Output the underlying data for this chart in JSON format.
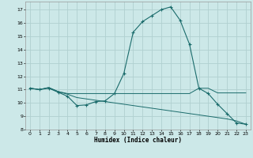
{
  "xlabel": "Humidex (Indice chaleur)",
  "bg_color": "#cce8e8",
  "grid_color": "#b0d0d0",
  "line_color": "#1a6b6b",
  "xlim": [
    -0.5,
    23.5
  ],
  "ylim": [
    8,
    17.6
  ],
  "xticks": [
    0,
    1,
    2,
    3,
    4,
    5,
    6,
    7,
    8,
    9,
    10,
    11,
    12,
    13,
    14,
    15,
    16,
    17,
    18,
    19,
    20,
    21,
    22,
    23
  ],
  "yticks": [
    8,
    9,
    10,
    11,
    12,
    13,
    14,
    15,
    16,
    17
  ],
  "curve1_x": [
    0,
    1,
    2,
    3,
    4,
    5,
    6,
    7,
    8,
    9,
    10,
    11,
    12,
    13,
    14,
    15,
    16,
    17,
    18,
    19,
    20,
    21,
    22,
    23
  ],
  "curve1_y": [
    11.1,
    11.0,
    11.1,
    10.8,
    10.5,
    9.8,
    9.85,
    10.1,
    10.15,
    10.7,
    12.2,
    15.3,
    16.1,
    16.55,
    17.0,
    17.2,
    16.2,
    14.4,
    11.1,
    10.7,
    9.9,
    9.2,
    8.5,
    8.4
  ],
  "curve2_x": [
    0,
    1,
    2,
    3,
    4,
    5,
    6,
    7,
    8,
    9,
    10,
    11,
    12,
    13,
    14,
    15,
    16,
    17,
    18,
    19,
    20,
    21,
    22,
    23
  ],
  "curve2_y": [
    11.1,
    11.0,
    11.15,
    10.85,
    10.7,
    10.7,
    10.7,
    10.7,
    10.7,
    10.7,
    10.7,
    10.7,
    10.7,
    10.7,
    10.7,
    10.7,
    10.7,
    10.7,
    11.1,
    11.1,
    10.75,
    10.75,
    10.75,
    10.75
  ],
  "curve3_x": [
    0,
    1,
    2,
    3,
    4,
    5,
    6,
    7,
    8,
    9,
    10,
    11,
    12,
    13,
    14,
    15,
    16,
    17,
    18,
    19,
    20,
    21,
    22,
    23
  ],
  "curve3_y": [
    11.1,
    11.0,
    11.15,
    10.85,
    10.65,
    10.4,
    10.3,
    10.2,
    10.1,
    10.0,
    9.9,
    9.8,
    9.7,
    9.6,
    9.5,
    9.4,
    9.3,
    9.2,
    9.1,
    9.0,
    8.9,
    8.8,
    8.65,
    8.4
  ]
}
